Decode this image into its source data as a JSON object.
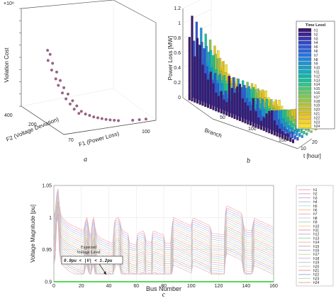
{
  "chart_data": [
    {
      "panel_label": "a",
      "type": "scatter",
      "xlabel": "F1 (Power Loss)",
      "ylabel": "F2 (Voltage Deviation)",
      "zlabel": "Violation Cost",
      "z_exponent": "×10⁸",
      "x_ticks": [
        "70",
        "100"
      ],
      "y_ticks": [
        "200",
        "400"
      ],
      "z_ticks": [
        "0",
        "1",
        "2",
        "3",
        "4",
        "5",
        "6",
        "7",
        "8"
      ],
      "zlim": [
        0,
        8
      ],
      "points": [
        {
          "x": 72,
          "y": 210,
          "z": 5.6
        },
        {
          "x": 73,
          "y": 215,
          "z": 5.2
        },
        {
          "x": 72,
          "y": 205,
          "z": 4.8
        },
        {
          "x": 74,
          "y": 220,
          "z": 4.4
        },
        {
          "x": 73,
          "y": 200,
          "z": 4.0
        },
        {
          "x": 75,
          "y": 210,
          "z": 3.7
        },
        {
          "x": 74,
          "y": 190,
          "z": 3.3
        },
        {
          "x": 76,
          "y": 205,
          "z": 3.0
        },
        {
          "x": 75,
          "y": 195,
          "z": 2.7
        },
        {
          "x": 77,
          "y": 200,
          "z": 2.4
        },
        {
          "x": 76,
          "y": 185,
          "z": 2.1
        },
        {
          "x": 78,
          "y": 190,
          "z": 1.9
        },
        {
          "x": 77,
          "y": 180,
          "z": 1.6
        },
        {
          "x": 79,
          "y": 175,
          "z": 1.4
        },
        {
          "x": 78,
          "y": 170,
          "z": 1.2
        },
        {
          "x": 80,
          "y": 165,
          "z": 1.0
        },
        {
          "x": 79,
          "y": 160,
          "z": 0.8
        },
        {
          "x": 81,
          "y": 150,
          "z": 0.6
        },
        {
          "x": 80,
          "y": 145,
          "z": 0.5
        },
        {
          "x": 82,
          "y": 140,
          "z": 0.4
        },
        {
          "x": 83,
          "y": 130,
          "z": 0.3
        },
        {
          "x": 84,
          "y": 120,
          "z": 0.2
        },
        {
          "x": 85,
          "y": 110,
          "z": 0.15
        },
        {
          "x": 86,
          "y": 100,
          "z": 0.1
        },
        {
          "x": 87,
          "y": 90,
          "z": 0.05
        },
        {
          "x": 88,
          "y": 80,
          "z": 0.03
        },
        {
          "x": 89,
          "y": 70,
          "z": 0.02
        },
        {
          "x": 90,
          "y": 60,
          "z": 0.01
        },
        {
          "x": 94,
          "y": 40,
          "z": 0.0
        },
        {
          "x": 96,
          "y": 35,
          "z": 0.0
        },
        {
          "x": 98,
          "y": 30,
          "z": 0.0
        }
      ]
    },
    {
      "panel_label": "b",
      "type": "bar3d",
      "xlabel": "Branch",
      "ylabel": "t [hour]",
      "zlabel": "Power Loss [MW]",
      "legend_title": "Time Level",
      "legend_placement": "right",
      "x_ticks": [
        "50",
        "100",
        "150"
      ],
      "y_ticks": [
        "10",
        "20"
      ],
      "z_ticks": [
        "0",
        "0.2",
        "0.4",
        "0.6",
        "0.8",
        "1",
        "1.2"
      ],
      "zlim": [
        0,
        1.2
      ],
      "series_names": [
        "h1",
        "h2",
        "h3",
        "h4",
        "h5",
        "h6",
        "h7",
        "h8",
        "h9",
        "h10",
        "h11",
        "h12",
        "h13",
        "h14",
        "h15",
        "h16",
        "h17",
        "h18",
        "h19",
        "h20",
        "h21",
        "h22",
        "h23",
        "h24"
      ],
      "series_colors": [
        "#3b1a6e",
        "#3c2490",
        "#3a36b0",
        "#3446c6",
        "#2e58d6",
        "#2866df",
        "#2476e0",
        "#2185db",
        "#1e94d2",
        "#1aa2c6",
        "#14aebb",
        "#0eb8ac",
        "#1cbf9b",
        "#33c488",
        "#4ec676",
        "#68c763",
        "#83c653",
        "#9dc446",
        "#b5c33a",
        "#ccc12f",
        "#e0c127",
        "#f0c624",
        "#f7d123",
        "#f9e021"
      ],
      "branches": [
        4,
        8,
        12,
        16,
        20,
        24,
        28,
        32,
        36,
        40,
        44,
        48,
        52,
        56,
        60,
        64,
        68,
        72,
        76,
        80,
        84,
        88,
        92,
        96,
        100,
        104,
        108,
        112,
        116,
        120,
        124,
        128,
        132,
        136,
        140,
        144,
        148,
        152,
        156,
        160
      ],
      "peak_loss_mw": [
        0.85,
        1.15,
        0.62,
        0.88,
        0.8,
        0.55,
        0.45,
        0.38,
        0.5,
        0.36,
        0.25,
        0.22,
        0.3,
        0.2,
        0.18,
        0.55,
        0.4,
        0.35,
        0.45,
        0.5,
        0.32,
        0.28,
        0.25,
        0.2,
        0.38,
        0.22,
        0.15,
        0.12,
        0.18,
        0.25,
        0.3,
        0.32,
        0.2,
        0.15,
        0.12,
        0.1,
        0.08,
        0.1,
        0.06,
        0.05
      ]
    },
    {
      "panel_label": "c",
      "type": "line",
      "xlabel": "Bus Number",
      "ylabel": "Voltage Magnitude [pu]",
      "xlim": [
        0,
        160
      ],
      "ylim": [
        0.9,
        1.05
      ],
      "x_ticks": [
        "0",
        "20",
        "40",
        "60",
        "80",
        "100",
        "120",
        "140",
        "160"
      ],
      "y_ticks": [
        "0.9",
        "0.95",
        "1",
        "1.05"
      ],
      "annotation_title": "Expected\nVoltage Level",
      "annotation_range": "0.9pu < |V| < 1.2pu",
      "reference_line_y": 0.9,
      "reference_line_color": "#22cc22",
      "legend_placement": "right",
      "series_names": [
        "h1",
        "h2",
        "h3",
        "h4",
        "h5",
        "h6",
        "h7",
        "h8",
        "h9",
        "h10",
        "h11",
        "h12",
        "h13",
        "h14",
        "h15",
        "h16",
        "h17",
        "h18",
        "h19",
        "h20",
        "h21",
        "h22",
        "h23",
        "h24"
      ],
      "series_colors": [
        "#f4a3a3",
        "#d9a8c8",
        "#c6b0e0",
        "#a7c3ec",
        "#bde0e0",
        "#f3c59a",
        "#e8b0b0",
        "#c9c9e9",
        "#a9d6c9",
        "#f2d49a",
        "#e6a0a0",
        "#b6b6e6",
        "#a0d8a0",
        "#e4c0a0",
        "#f0a0b0",
        "#b0c0f0",
        "#c8e0a0",
        "#e0b0d8",
        "#a0d0e8",
        "#f0d0a0",
        "#d8a0a0",
        "#a8a8e0",
        "#b8e0b8",
        "#e8a0c0"
      ],
      "profile_x": [
        0,
        1,
        2,
        3,
        4,
        5,
        6,
        7,
        8,
        9,
        10,
        11,
        12,
        13,
        14,
        15,
        16,
        17,
        18,
        19,
        20,
        21,
        22,
        23,
        24,
        25,
        26,
        27,
        28,
        29,
        30,
        31,
        32,
        33,
        34,
        35,
        36,
        37,
        38,
        39,
        40,
        41,
        42,
        43,
        44,
        45,
        46,
        47,
        48,
        49,
        50,
        51,
        52,
        53,
        54,
        55,
        56,
        57,
        58,
        59,
        60,
        61,
        62,
        63,
        64,
        65,
        66,
        67,
        68,
        69,
        70,
        71,
        72,
        73,
        74,
        75,
        76,
        77,
        78,
        79,
        80,
        81,
        82,
        83,
        84,
        85,
        86,
        87,
        88,
        89,
        90,
        91,
        92,
        93,
        94,
        95,
        96,
        97,
        98,
        99,
        100,
        101,
        102,
        103,
        104,
        105,
        106,
        107,
        108,
        109,
        110,
        111,
        112,
        113,
        114,
        115,
        116,
        117,
        118,
        119,
        120,
        121,
        122,
        123,
        124,
        125,
        126,
        127,
        128,
        129,
        130,
        131,
        132,
        133,
        134,
        135,
        136,
        137,
        138,
        139,
        140,
        141,
        142,
        143,
        144,
        145,
        146,
        147,
        148,
        149,
        150,
        151,
        152,
        153,
        154,
        155,
        156,
        157,
        158,
        159,
        160
      ],
      "h1_values": [
        1.0,
        1.01,
        1.035,
        1.045,
        1.02,
        1.005,
        1.0,
        0.998,
        0.996,
        0.994,
        0.992,
        0.99,
        0.989,
        0.988,
        0.987,
        0.986,
        0.985,
        0.984,
        0.983,
        0.982,
        0.981,
        0.98,
        0.982,
        0.995,
        1.0,
        0.99,
        0.975,
        0.972,
        0.995,
        1.0,
        0.985,
        0.975,
        0.972,
        0.97,
        0.968,
        0.967,
        0.966,
        0.965,
        0.964,
        0.963,
        0.962,
        0.961,
        0.96,
        0.962,
        0.992,
        0.998,
        0.999,
        1.0,
        0.995,
        0.985,
        0.98,
        0.978,
        0.977,
        0.976,
        0.975,
        0.96,
        0.96,
        0.959,
        0.958,
        0.958,
        0.957,
        0.975,
        0.976,
        0.977,
        0.978,
        0.979,
        0.976,
        0.965,
        0.963,
        0.962,
        0.962,
        0.961,
        0.978,
        0.979,
        0.978,
        0.977,
        0.976,
        0.975,
        0.974,
        0.974,
        0.972,
        0.96,
        0.96,
        0.96,
        0.96,
        0.96,
        0.985,
        1.0,
        0.999,
        0.998,
        0.997,
        0.996,
        0.995,
        0.994,
        0.993,
        0.992,
        0.991,
        0.99,
        0.989,
        0.988,
        0.987,
        0.998,
        0.999,
        0.998,
        0.997,
        0.996,
        0.995,
        0.994,
        0.993,
        0.992,
        0.991,
        0.99,
        0.989,
        0.988,
        0.985,
        0.975,
        0.975,
        0.975,
        0.975,
        0.974,
        0.974,
        0.974,
        0.973,
        0.973,
        0.973,
        1.01,
        1.018,
        1.017,
        1.016,
        1.015,
        1.014,
        1.013,
        1.012,
        1.011,
        1.01,
        1.009,
        1.008,
        1.005,
        0.99,
        0.982,
        0.981,
        0.98,
        0.98,
        0.98,
        0.979,
        0.99,
        0.999,
        0.998,
        0.997,
        0.996,
        0.995,
        0.994,
        0.993,
        0.992,
        0.991,
        0.99,
        0.989,
        0.988,
        0.987,
        0.986,
        0.985,
        0.985,
        0.985,
        0.985,
        0.985
      ],
      "drop_per_hour_pu": 0.0032
    }
  ]
}
